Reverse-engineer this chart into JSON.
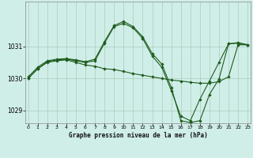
{
  "background_color": "#d0eee8",
  "line_color": "#1e5c1e",
  "title": "Graphe pression niveau de la mer (hPa)",
  "xlim": [
    -0.3,
    23.3
  ],
  "ylim": [
    1028.6,
    1032.4
  ],
  "yticks": [
    1029,
    1030,
    1031
  ],
  "xticks": [
    0,
    1,
    2,
    3,
    4,
    5,
    6,
    7,
    8,
    9,
    10,
    11,
    12,
    13,
    14,
    15,
    16,
    17,
    18,
    19,
    20,
    21,
    22,
    23
  ],
  "grid_color": "#aaccbb",
  "series1_x": [
    0,
    1,
    2,
    3,
    4,
    5,
    6,
    7,
    8,
    9,
    10,
    11,
    12,
    13,
    14,
    15,
    16,
    17,
    18,
    19,
    20,
    21,
    22,
    23
  ],
  "series1_y": [
    1030.0,
    1030.3,
    1030.5,
    1030.55,
    1030.58,
    1030.5,
    1030.42,
    1030.38,
    1030.3,
    1030.28,
    1030.22,
    1030.15,
    1030.1,
    1030.05,
    1030.0,
    1029.95,
    1029.92,
    1029.88,
    1029.85,
    1029.85,
    1029.9,
    1030.05,
    1031.05,
    1031.05
  ],
  "series2_x": [
    0,
    1,
    2,
    3,
    4,
    5,
    6,
    7,
    8,
    9,
    10,
    11,
    12,
    13,
    14,
    15,
    16,
    17,
    18,
    19,
    20,
    21,
    22,
    23
  ],
  "series2_y": [
    1030.0,
    1030.3,
    1030.52,
    1030.58,
    1030.6,
    1030.55,
    1030.5,
    1030.55,
    1031.1,
    1031.62,
    1031.72,
    1031.58,
    1031.25,
    1030.7,
    1030.35,
    1029.62,
    1028.82,
    1028.68,
    1029.35,
    1029.92,
    1030.5,
    1031.08,
    1031.1,
    1031.05
  ],
  "series3_x": [
    0,
    1,
    2,
    3,
    4,
    5,
    6,
    7,
    8,
    9,
    10,
    11,
    12,
    13,
    14,
    15,
    16,
    17,
    18,
    19,
    20,
    21,
    22,
    23
  ],
  "series3_y": [
    1030.05,
    1030.35,
    1030.55,
    1030.6,
    1030.62,
    1030.58,
    1030.52,
    1030.6,
    1031.15,
    1031.65,
    1031.78,
    1031.62,
    1031.3,
    1030.78,
    1030.45,
    1029.72,
    1028.68,
    1028.62,
    1028.68,
    1029.5,
    1029.98,
    1031.08,
    1031.12,
    1031.05
  ]
}
